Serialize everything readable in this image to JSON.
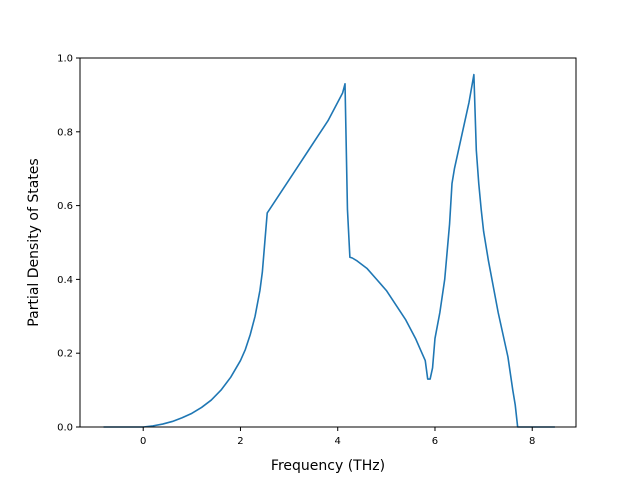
{
  "chart_data": {
    "type": "line",
    "title": "",
    "xlabel": "Frequency (THz)",
    "ylabel": "Partial Density of States",
    "xlim": [
      -1.3,
      8.9
    ],
    "ylim": [
      0.0,
      1.0
    ],
    "xticks": [
      0,
      2,
      4,
      6,
      8
    ],
    "xtick_labels": [
      "0",
      "2",
      "4",
      "6",
      "8"
    ],
    "yticks": [
      0.0,
      0.2,
      0.4,
      0.6,
      0.8,
      1.0
    ],
    "ytick_labels": [
      "0.0",
      "0.2",
      "0.4",
      "0.6",
      "0.8",
      "1.0"
    ],
    "grid": false,
    "series": [
      {
        "color": "#1f77b4",
        "x": [
          -0.8,
          -0.5,
          0.0,
          0.2,
          0.4,
          0.6,
          0.8,
          1.0,
          1.2,
          1.4,
          1.6,
          1.8,
          2.0,
          2.1,
          2.2,
          2.3,
          2.4,
          2.45,
          2.5,
          2.55,
          2.6,
          2.8,
          3.0,
          3.2,
          3.4,
          3.6,
          3.8,
          4.0,
          4.1,
          4.15,
          4.2,
          4.25,
          4.3,
          4.4,
          4.6,
          4.8,
          5.0,
          5.2,
          5.4,
          5.6,
          5.7,
          5.8,
          5.85,
          5.9,
          5.95,
          6.0,
          6.1,
          6.2,
          6.3,
          6.35,
          6.4,
          6.5,
          6.6,
          6.7,
          6.8,
          6.85,
          6.9,
          6.95,
          7.0,
          7.1,
          7.2,
          7.3,
          7.4,
          7.5,
          7.6,
          7.65,
          7.7,
          7.8,
          8.0,
          8.2,
          8.45
        ],
        "y": [
          0.0,
          0.0,
          0.0,
          0.003,
          0.008,
          0.015,
          0.025,
          0.037,
          0.053,
          0.073,
          0.1,
          0.135,
          0.18,
          0.21,
          0.25,
          0.3,
          0.37,
          0.42,
          0.5,
          0.58,
          0.59,
          0.63,
          0.67,
          0.71,
          0.75,
          0.79,
          0.83,
          0.88,
          0.905,
          0.93,
          0.59,
          0.46,
          0.458,
          0.45,
          0.43,
          0.4,
          0.37,
          0.33,
          0.29,
          0.24,
          0.21,
          0.18,
          0.13,
          0.13,
          0.16,
          0.24,
          0.31,
          0.4,
          0.55,
          0.66,
          0.7,
          0.76,
          0.82,
          0.88,
          0.955,
          0.75,
          0.66,
          0.59,
          0.53,
          0.45,
          0.38,
          0.31,
          0.25,
          0.19,
          0.1,
          0.06,
          0.0,
          0.0,
          0.0,
          0.0,
          0.0
        ]
      }
    ]
  }
}
